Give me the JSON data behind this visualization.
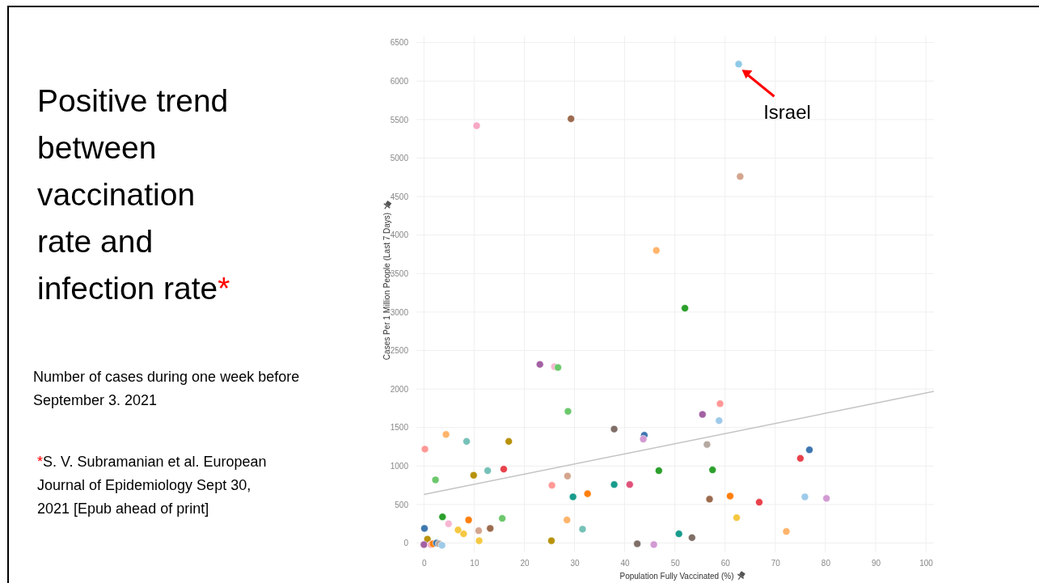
{
  "chart_data": {
    "type": "scatter",
    "title": "Positive trend between vaccination rate and infection rate*",
    "subtitle": "Number of cases during one week before September 3. 2021",
    "xlabel": "Population Fully Vaccinated (%)",
    "ylabel": "Cases Per 1 Million People (Last 7 Days)",
    "xlim": [
      -1.5,
      101.6
    ],
    "xticks": [
      0,
      10,
      20,
      30,
      40,
      50,
      60,
      70,
      80,
      90,
      100
    ],
    "ylim": [
      -120,
      6580
    ],
    "yticks": [
      0,
      500,
      1000,
      1500,
      2000,
      2500,
      3000,
      3500,
      4000,
      4500,
      5000,
      5500,
      6000,
      6500
    ],
    "grid": true,
    "annotations": [
      {
        "text": "Israel",
        "x": 62.7,
        "y": 6220
      },
      "*S. V. Subramanian et al. European Journal of Epidemiology Sept 30, 2021 [Epub ahead of print]"
    ],
    "series": [
      {
        "type": "scatter",
        "marker": "circle",
        "x": [
          62.7,
          10.5,
          29.3,
          63,
          46.3,
          52,
          23.1,
          26,
          26.7,
          28.7,
          55.5,
          59,
          58.8,
          56.4,
          37.9,
          43.9,
          43.7,
          0.2,
          4.4,
          8.5,
          16.9,
          2.3,
          9.9,
          12.7,
          15.9,
          25.5,
          28.6,
          29.7,
          32.6,
          37.9,
          41,
          46.8,
          57.5,
          75,
          76.8,
          56.9,
          61,
          66.8,
          75.9,
          80.2,
          62.3,
          72.2,
          53.4,
          50.8,
          45.8,
          42.5,
          31.6,
          28.5,
          25.4,
          15.6,
          13.2,
          10.9,
          11,
          8.9,
          7.9,
          6.8,
          4.9,
          3.7,
          0.1,
          0.7,
          0,
          1.4,
          1.8,
          2.5,
          3,
          3.6
        ],
        "values": [
          6220,
          5420,
          5510,
          4760,
          3800,
          3050,
          2320,
          2290,
          2280,
          1710,
          1670,
          1810,
          1590,
          1280,
          1480,
          1400,
          1350,
          1220,
          1410,
          1320,
          1320,
          820,
          880,
          940,
          960,
          750,
          870,
          600,
          640,
          760,
          760,
          940,
          950,
          1100,
          1210,
          570,
          610,
          530,
          600,
          580,
          330,
          150,
          70,
          120,
          -20,
          -10,
          180,
          300,
          30,
          320,
          190,
          160,
          30,
          300,
          120,
          170,
          250,
          340,
          190,
          50,
          -20,
          -20,
          -10,
          0,
          -10,
          -30
        ],
        "colors": [
          "#8ecae6",
          "#f7a8c4",
          "#9c6b4e",
          "#d4a58e",
          "#ffb46b",
          "#2ca02c",
          "#a361a3",
          "#f7b6d2",
          "#6cc86c",
          "#6cc86c",
          "#a361a3",
          "#ff9896",
          "#9ecae9",
          "#b5a9a0",
          "#7f6f67",
          "#3e77b0",
          "#d39ad3",
          "#ff9896",
          "#ffb46b",
          "#76c1b8",
          "#b8920c",
          "#6cc86c",
          "#b8920c",
          "#76c1b8",
          "#e8424c",
          "#ff9896",
          "#d4a58e",
          "#189c8c",
          "#ff7f0e",
          "#189c8c",
          "#e0527a",
          "#2ca02c",
          "#2ca02c",
          "#e8424c",
          "#3e77b0",
          "#9c6b4e",
          "#ff7f0e",
          "#e8424c",
          "#9ecae9",
          "#d39ad3",
          "#f5c842",
          "#ffb46b",
          "#7f6f67",
          "#189c8c",
          "#d39ad3",
          "#7f6f67",
          "#76c1b8",
          "#ffb46b",
          "#b8920c",
          "#6cc86c",
          "#9c6b4e",
          "#d4a58e",
          "#f5c842",
          "#ff7f0e",
          "#f5c842",
          "#f5c842",
          "#f7b6d2",
          "#2ca02c",
          "#3e77b0",
          "#b8920c",
          "#a361a3",
          "#f7a8c4",
          "#ff7f0e",
          "#3e77b0",
          "#b5a9a0",
          "#9ecae9"
        ]
      },
      {
        "type": "line",
        "color": "#c4c4c4",
        "x": [
          0,
          101.6
        ],
        "values": [
          630,
          1970
        ]
      }
    ]
  }
}
